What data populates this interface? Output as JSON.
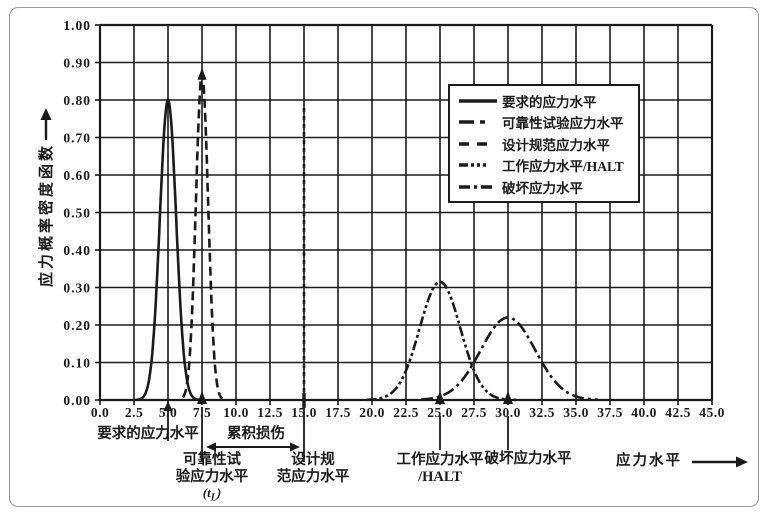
{
  "figure": {
    "bg": "#ffffff",
    "ink": "#1a1a1a",
    "frame_color": "#9a9a9a"
  },
  "chart_data": {
    "type": "line",
    "title": "",
    "xlabel": "应力水平",
    "ylabel": "应力概率密度函数",
    "xlim": [
      0,
      45
    ],
    "ylim": [
      0,
      1.0
    ],
    "grid": "on",
    "legend_position": "upper-right-inside",
    "x_tick_labels": [
      "0.0",
      "2.5",
      "5.0",
      "7.5",
      "10.0",
      "12.5",
      "15.0",
      "17.5",
      "20.0",
      "22.5",
      "25.0",
      "27.5",
      "30.0",
      "32.5",
      "35.0",
      "37.5",
      "40.0",
      "42.5",
      "45.0"
    ],
    "y_tick_labels": [
      "1.00",
      "0.90",
      "0.80",
      "0.70",
      "0.60",
      "0.50",
      "0.40",
      "0.30",
      "0.20",
      "0.10",
      "0.00"
    ],
    "series": [
      {
        "name": "要求的应力水平",
        "shape": "gaussian",
        "mean": 5,
        "peak": 0.8,
        "sigma": 0.6,
        "span": [
          2.6,
          7.4
        ],
        "dash": "",
        "legend_dash": "",
        "peak_arrow": false
      },
      {
        "name": "可靠性试验应力水平",
        "shape": "gaussian",
        "mean": 7.5,
        "peak": 0.87,
        "sigma": 0.45,
        "span": [
          6.1,
          9.0
        ],
        "dash": "9 5",
        "legend_dash": "15 6 5 20",
        "peak_arrow": true
      },
      {
        "name": "设计规范应力水平",
        "shape": "vline",
        "x": 15,
        "top": 0.78,
        "dash": "4 4",
        "legend_dash": "10 8 10 20",
        "peak_arrow": false
      },
      {
        "name": "工作应力水平/HALT",
        "shape": "gaussian",
        "mean": 25,
        "peak": 0.315,
        "sigma": 1.5,
        "span": [
          19.6,
          30.6
        ],
        "dash": "10 3 3 3 3 3",
        "legend_dash": "9 3 3 3 3 3 3 20",
        "peak_arrow": false
      },
      {
        "name": "破坏应力水平",
        "shape": "gaussian",
        "mean": 30,
        "peak": 0.22,
        "sigma": 2.0,
        "span": [
          23.6,
          36.6
        ],
        "dash": "12 4 3 4",
        "legend_dash": "11 4 3 4 11 20",
        "peak_arrow": false
      }
    ],
    "axis_arrow_markers_x": [
      7.5,
      25,
      30
    ],
    "pointers": {
      "required_x": 5,
      "reliability_x": 7.5,
      "design_x": 15,
      "cumulative_span": [
        7.5,
        15
      ],
      "working_x": 25,
      "destruct_x": 30
    }
  },
  "annotations": {
    "required": "要求的应力水平",
    "cumulative": "累积损伤",
    "reliability_line1": "可靠性试",
    "reliability_line2": "验应力水平",
    "t_pre": "(t",
    "t_sub": "L",
    "t_post": ")",
    "design_line1": "设计规",
    "design_line2": "范应力水平",
    "working_line1": "工作应力水平",
    "working_line2": "/HALT",
    "destruct": "破坏应力水平",
    "x_axis_label": "应力水平"
  }
}
